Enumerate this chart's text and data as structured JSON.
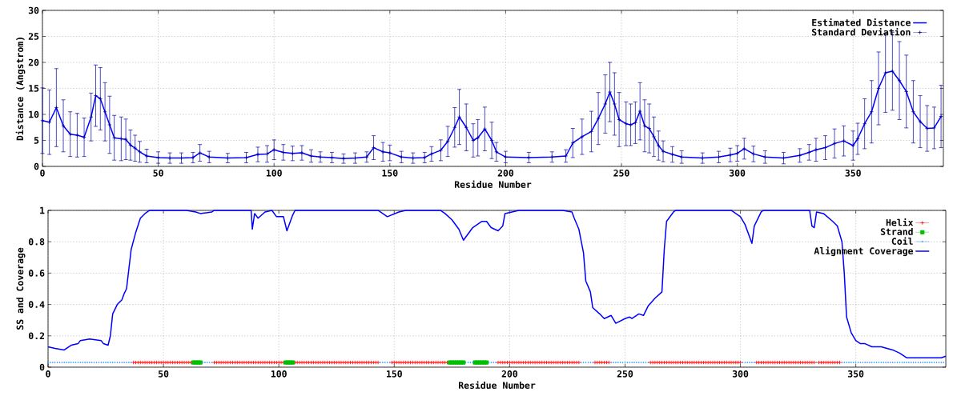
{
  "chart_data": [
    {
      "type": "line",
      "xlabel": "Residue Number",
      "ylabel": "Distance (Angstrom)",
      "xlim": [
        0,
        389
      ],
      "ylim": [
        0,
        30
      ],
      "xticks": [
        0,
        50,
        100,
        150,
        200,
        250,
        300,
        350
      ],
      "yticks": [
        0,
        5,
        10,
        15,
        20,
        25,
        30
      ],
      "grid": true,
      "legend": "top right",
      "x": [
        0,
        3,
        6,
        9,
        12,
        15,
        18,
        21,
        23,
        25,
        27,
        29,
        31,
        34,
        36,
        38,
        40,
        42,
        45,
        50,
        55,
        60,
        65,
        68,
        72,
        80,
        88,
        93,
        97,
        100,
        104,
        108,
        112,
        116,
        120,
        125,
        130,
        135,
        140,
        143,
        147,
        150,
        155,
        160,
        165,
        168,
        172,
        175,
        178,
        180,
        183,
        186,
        188,
        191,
        194,
        196,
        200,
        210,
        220,
        226,
        229,
        233,
        237,
        240,
        243,
        245,
        247,
        249,
        252,
        254,
        256,
        258,
        260,
        262,
        264,
        266,
        268,
        272,
        276,
        285,
        292,
        297,
        300,
        303,
        307,
        312,
        320,
        327,
        331,
        334,
        338,
        342,
        346,
        350,
        352,
        355,
        358,
        361,
        364,
        367,
        370,
        373,
        376,
        379,
        382,
        385,
        388
      ],
      "series": [
        {
          "name": "Estimated Distance",
          "color": "#0000ff",
          "marker": "none",
          "values": [
            8.8,
            8.5,
            11.3,
            7.8,
            6.2,
            6.0,
            5.6,
            9.5,
            13.6,
            13.0,
            10.5,
            8.0,
            5.5,
            5.3,
            5.2,
            4.1,
            3.5,
            2.8,
            2.0,
            1.7,
            1.6,
            1.6,
            1.7,
            2.6,
            1.8,
            1.6,
            1.7,
            2.3,
            2.4,
            3.2,
            2.7,
            2.5,
            2.6,
            2.0,
            1.8,
            1.7,
            1.5,
            1.6,
            1.8,
            3.6,
            2.8,
            2.6,
            1.8,
            1.6,
            1.7,
            2.4,
            3.1,
            4.8,
            7.5,
            9.5,
            7.5,
            5.0,
            5.5,
            7.2,
            5.0,
            2.8,
            1.8,
            1.7,
            1.8,
            2.0,
            4.5,
            5.7,
            6.7,
            9.2,
            12.0,
            14.3,
            12.0,
            9.0,
            8.2,
            8.0,
            8.4,
            10.6,
            7.8,
            7.3,
            5.7,
            4.0,
            2.9,
            2.3,
            1.8,
            1.6,
            1.8,
            2.2,
            2.5,
            3.4,
            2.4,
            1.8,
            1.6,
            2.1,
            2.7,
            3.2,
            3.6,
            4.4,
            4.9,
            4.0,
            5.3,
            8.2,
            10.5,
            15.0,
            18.0,
            18.3,
            16.5,
            14.4,
            10.5,
            8.6,
            7.3,
            7.4,
            9.6
          ]
        },
        {
          "name": "Standard Deviation",
          "type": "scatter",
          "color": "#0000a0",
          "marker": "cross",
          "values": [
            8.8,
            8.5,
            11.3,
            7.8,
            6.2,
            6.0,
            5.6,
            9.5,
            13.6,
            13.0,
            10.5,
            8.0,
            5.5,
            5.3,
            5.2,
            4.1,
            3.5,
            2.8,
            2.0,
            1.7,
            1.6,
            1.6,
            1.7,
            2.6,
            1.8,
            1.6,
            1.7,
            2.3,
            2.4,
            3.2,
            2.7,
            2.5,
            2.6,
            2.0,
            1.8,
            1.7,
            1.5,
            1.6,
            1.8,
            3.6,
            2.8,
            2.6,
            1.8,
            1.6,
            1.7,
            2.4,
            3.1,
            4.8,
            7.5,
            9.5,
            7.5,
            5.0,
            5.5,
            7.2,
            5.0,
            2.8,
            1.8,
            1.7,
            1.8,
            2.0,
            4.5,
            5.7,
            6.7,
            9.2,
            12.0,
            14.3,
            12.0,
            9.0,
            8.2,
            8.0,
            8.4,
            10.6,
            7.8,
            7.3,
            5.7,
            4.0,
            2.9,
            2.3,
            1.8,
            1.6,
            1.8,
            2.2,
            2.5,
            3.4,
            2.4,
            1.8,
            1.6,
            2.1,
            2.7,
            3.2,
            3.6,
            4.4,
            4.9,
            4.0,
            5.3,
            8.2,
            10.5,
            15.0,
            18.0,
            18.3,
            16.5,
            14.4,
            10.5,
            8.6,
            7.3,
            7.4,
            9.6
          ],
          "errors": [
            6.3,
            6.2,
            7.5,
            5.0,
            4.3,
            4.2,
            3.7,
            4.6,
            5.9,
            6.0,
            5.6,
            5.5,
            4.3,
            4.2,
            3.9,
            2.9,
            2.5,
            2.0,
            1.3,
            1.1,
            1.0,
            1.0,
            1.0,
            1.6,
            1.1,
            0.9,
            1.0,
            1.4,
            1.6,
            1.9,
            1.5,
            1.4,
            1.4,
            1.2,
            1.0,
            1.0,
            0.9,
            1.0,
            1.0,
            2.3,
            1.8,
            1.5,
            1.1,
            1.0,
            1.0,
            1.4,
            2.0,
            2.9,
            3.8,
            5.3,
            4.5,
            3.2,
            3.5,
            4.2,
            3.5,
            1.8,
            1.1,
            1.0,
            1.0,
            1.2,
            2.8,
            3.4,
            3.9,
            5.0,
            5.6,
            5.7,
            6.0,
            5.2,
            4.2,
            4.0,
            4.0,
            5.5,
            5.0,
            4.7,
            3.8,
            2.8,
            2.0,
            1.5,
            1.2,
            1.0,
            1.1,
            1.3,
            1.5,
            2.0,
            1.5,
            1.2,
            1.1,
            1.3,
            1.5,
            2.2,
            2.3,
            2.8,
            2.9,
            2.8,
            3.0,
            4.8,
            6.0,
            7.0,
            7.6,
            7.5,
            7.5,
            7.0,
            6.0,
            5.0,
            4.4,
            4.0,
            6.0
          ]
        }
      ]
    },
    {
      "type": "line",
      "xlabel": "Residue Number",
      "ylabel": "SS and Coverage",
      "xlim": [
        0,
        389
      ],
      "ylim": [
        0,
        1
      ],
      "xticks": [
        0,
        50,
        100,
        150,
        200,
        250,
        300,
        350
      ],
      "yticks": [
        0,
        0.2,
        0.4,
        0.6,
        0.8,
        1
      ],
      "grid": true,
      "legend": "top right",
      "series": [
        {
          "name": "Helix",
          "type": "scatter",
          "color": "#ff0000",
          "marker": "cross",
          "x": [
            37,
            38,
            39,
            40,
            41,
            42,
            43,
            44,
            45,
            46,
            47,
            48,
            49,
            50,
            51,
            52,
            53,
            54,
            55,
            56,
            57,
            58,
            59,
            60,
            61,
            62,
            72,
            73,
            74,
            75,
            76,
            77,
            78,
            79,
            80,
            81,
            82,
            83,
            84,
            85,
            86,
            87,
            88,
            89,
            90,
            91,
            92,
            93,
            94,
            95,
            96,
            97,
            98,
            99,
            100,
            101,
            102,
            107,
            108,
            109,
            110,
            111,
            112,
            113,
            114,
            115,
            116,
            117,
            118,
            119,
            120,
            121,
            122,
            123,
            124,
            125,
            126,
            127,
            128,
            129,
            130,
            131,
            132,
            133,
            134,
            135,
            136,
            137,
            138,
            139,
            140,
            141,
            142,
            143,
            149,
            150,
            151,
            152,
            153,
            154,
            155,
            156,
            157,
            158,
            159,
            160,
            161,
            162,
            163,
            164,
            165,
            166,
            167,
            168,
            169,
            170,
            171,
            172,
            173,
            195,
            196,
            197,
            198,
            199,
            200,
            201,
            202,
            203,
            204,
            205,
            206,
            207,
            208,
            209,
            210,
            211,
            212,
            213,
            214,
            215,
            216,
            217,
            218,
            219,
            220,
            221,
            222,
            223,
            224,
            225,
            226,
            227,
            228,
            229,
            230,
            237,
            238,
            239,
            240,
            241,
            242,
            243,
            261,
            262,
            263,
            264,
            265,
            266,
            267,
            268,
            269,
            270,
            271,
            272,
            273,
            274,
            275,
            276,
            277,
            278,
            279,
            280,
            281,
            282,
            283,
            284,
            285,
            286,
            287,
            288,
            289,
            290,
            291,
            292,
            293,
            294,
            295,
            296,
            297,
            298,
            299,
            300,
            307,
            308,
            309,
            310,
            311,
            312,
            313,
            314,
            315,
            316,
            317,
            318,
            319,
            320,
            321,
            322,
            323,
            324,
            325,
            326,
            327,
            328,
            329,
            330,
            331,
            332,
            334,
            335,
            336,
            337,
            338,
            339,
            340,
            341,
            342,
            343
          ],
          "values": [
            0.03,
            0.03,
            0.03,
            0.03,
            0.03,
            0.03,
            0.03,
            0.03,
            0.03,
            0.03,
            0.03,
            0.03,
            0.03,
            0.03,
            0.03,
            0.03,
            0.03,
            0.03,
            0.03,
            0.03,
            0.03,
            0.03,
            0.03,
            0.03,
            0.03,
            0.03,
            0.03,
            0.03,
            0.03,
            0.03,
            0.03,
            0.03,
            0.03,
            0.03,
            0.03,
            0.03,
            0.03,
            0.03,
            0.03,
            0.03,
            0.03,
            0.03,
            0.03,
            0.03,
            0.03,
            0.03,
            0.03,
            0.03,
            0.03,
            0.03,
            0.03,
            0.03,
            0.03,
            0.03,
            0.03,
            0.03,
            0.03,
            0.03,
            0.03,
            0.03,
            0.03,
            0.03,
            0.03,
            0.03,
            0.03,
            0.03,
            0.03,
            0.03,
            0.03,
            0.03,
            0.03,
            0.03,
            0.03,
            0.03,
            0.03,
            0.03,
            0.03,
            0.03,
            0.03,
            0.03,
            0.03,
            0.03,
            0.03,
            0.03,
            0.03,
            0.03,
            0.03,
            0.03,
            0.03,
            0.03,
            0.03,
            0.03,
            0.03,
            0.03,
            0.03,
            0.03,
            0.03,
            0.03,
            0.03,
            0.03,
            0.03,
            0.03,
            0.03,
            0.03,
            0.03,
            0.03,
            0.03,
            0.03,
            0.03,
            0.03,
            0.03,
            0.03,
            0.03,
            0.03,
            0.03,
            0.03,
            0.03,
            0.03,
            0.03,
            0.03,
            0.03,
            0.03,
            0.03,
            0.03,
            0.03,
            0.03,
            0.03,
            0.03,
            0.03,
            0.03,
            0.03,
            0.03,
            0.03,
            0.03,
            0.03,
            0.03,
            0.03,
            0.03,
            0.03,
            0.03,
            0.03,
            0.03,
            0.03,
            0.03,
            0.03,
            0.03,
            0.03,
            0.03,
            0.03,
            0.03,
            0.03,
            0.03,
            0.03,
            0.03,
            0.03,
            0.03,
            0.03,
            0.03,
            0.03,
            0.03,
            0.03,
            0.03,
            0.03,
            0.03,
            0.03,
            0.03,
            0.03,
            0.03,
            0.03,
            0.03,
            0.03,
            0.03,
            0.03,
            0.03,
            0.03,
            0.03,
            0.03,
            0.03,
            0.03,
            0.03,
            0.03,
            0.03,
            0.03,
            0.03,
            0.03,
            0.03,
            0.03,
            0.03,
            0.03,
            0.03,
            0.03,
            0.03,
            0.03,
            0.03,
            0.03,
            0.03,
            0.03,
            0.03,
            0.03,
            0.03,
            0.03,
            0.03,
            0.03,
            0.03,
            0.03,
            0.03,
            0.03,
            0.03,
            0.03,
            0.03,
            0.03,
            0.03,
            0.03,
            0.03,
            0.03,
            0.03,
            0.03,
            0.03,
            0.03,
            0.03,
            0.03,
            0.03,
            0.03,
            0.03,
            0.03,
            0.03,
            0.03,
            0.03,
            0.03,
            0.03,
            0.03,
            0.03,
            0.03,
            0.03,
            0.03,
            0.03,
            0.03,
            0.03
          ]
        },
        {
          "name": "Strand",
          "type": "scatter",
          "color": "#00c000",
          "marker": "square",
          "x": [
            63,
            64,
            65,
            66,
            103,
            104,
            105,
            106,
            174,
            175,
            176,
            177,
            178,
            179,
            180,
            185,
            186,
            187,
            188,
            189,
            190
          ],
          "values": [
            0.03,
            0.03,
            0.03,
            0.03,
            0.03,
            0.03,
            0.03,
            0.03,
            0.03,
            0.03,
            0.03,
            0.03,
            0.03,
            0.03,
            0.03,
            0.03,
            0.03,
            0.03,
            0.03,
            0.03,
            0.03
          ]
        },
        {
          "name": "Coil",
          "type": "scatter",
          "color": "#1e90ff",
          "marker": "circle",
          "x": [
            0,
            1,
            2,
            3,
            4,
            5,
            6,
            7,
            8,
            9,
            10,
            11,
            12,
            13,
            14,
            15,
            16,
            17,
            18,
            19,
            20,
            21,
            22,
            23,
            24,
            25,
            26,
            27,
            28,
            29,
            30,
            31,
            32,
            33,
            34,
            35,
            36,
            67,
            68,
            69,
            70,
            71,
            144,
            145,
            146,
            147,
            148,
            181,
            182,
            183,
            184,
            191,
            192,
            193,
            194,
            231,
            232,
            233,
            234,
            235,
            236,
            244,
            245,
            246,
            247,
            248,
            249,
            250,
            251,
            252,
            253,
            254,
            255,
            256,
            257,
            258,
            259,
            260,
            301,
            302,
            303,
            304,
            305,
            306,
            333,
            344,
            345,
            346,
            347,
            348,
            349,
            350,
            351,
            352,
            353,
            354,
            355,
            356,
            357,
            358,
            359,
            360,
            361,
            362,
            363,
            364,
            365,
            366,
            367,
            368,
            369,
            370,
            371,
            372,
            373,
            374,
            375,
            376,
            377,
            378,
            379,
            380,
            381,
            382,
            383,
            384,
            385,
            386,
            387,
            388
          ],
          "values": [
            0.03,
            0.03,
            0.03,
            0.03,
            0.03,
            0.03,
            0.03,
            0.03,
            0.03,
            0.03,
            0.03,
            0.03,
            0.03,
            0.03,
            0.03,
            0.03,
            0.03,
            0.03,
            0.03,
            0.03,
            0.03,
            0.03,
            0.03,
            0.03,
            0.03,
            0.03,
            0.03,
            0.03,
            0.03,
            0.03,
            0.03,
            0.03,
            0.03,
            0.03,
            0.03,
            0.03,
            0.03,
            0.03,
            0.03,
            0.03,
            0.03,
            0.03,
            0.03,
            0.03,
            0.03,
            0.03,
            0.03,
            0.03,
            0.03,
            0.03,
            0.03,
            0.03,
            0.03,
            0.03,
            0.03,
            0.03,
            0.03,
            0.03,
            0.03,
            0.03,
            0.03,
            0.03,
            0.03,
            0.03,
            0.03,
            0.03,
            0.03,
            0.03,
            0.03,
            0.03,
            0.03,
            0.03,
            0.03,
            0.03,
            0.03,
            0.03,
            0.03,
            0.03,
            0.03,
            0.03,
            0.03,
            0.03,
            0.03,
            0.03,
            0.03,
            0.03,
            0.03,
            0.03,
            0.03,
            0.03,
            0.03,
            0.03,
            0.03,
            0.03,
            0.03,
            0.03,
            0.03,
            0.03,
            0.03,
            0.03,
            0.03,
            0.03,
            0.03,
            0.03,
            0.03,
            0.03,
            0.03,
            0.03,
            0.03,
            0.03,
            0.03,
            0.03,
            0.03,
            0.03,
            0.03,
            0.03,
            0.03,
            0.03,
            0.03,
            0.03,
            0.03,
            0.03,
            0.03,
            0.03,
            0.03,
            0.03,
            0.03,
            0.03,
            0.03,
            0.03
          ]
        },
        {
          "name": "Alignment Coverage",
          "color": "#0000ff",
          "marker": "none",
          "x": [
            0,
            3,
            7,
            10,
            13,
            14,
            18,
            23,
            24,
            26,
            27,
            28,
            30,
            32,
            33,
            34,
            36,
            38,
            40,
            42,
            44,
            60,
            64,
            66,
            71,
            72,
            88,
            88.5,
            89.5,
            91,
            94,
            97,
            99,
            102,
            103.5,
            106,
            107,
            143,
            147,
            152,
            155,
            170,
            172,
            175,
            178,
            180,
            184,
            187,
            188,
            190,
            192,
            195,
            197,
            198,
            204,
            223,
            227,
            228,
            230,
            232,
            233,
            235,
            236,
            239,
            241,
            244,
            246,
            250,
            252,
            253,
            256,
            258,
            260,
            263,
            266,
            267,
            268,
            271,
            272,
            296,
            300,
            302,
            305,
            306,
            309,
            310,
            330,
            331,
            332,
            333,
            336,
            340,
            342,
            344,
            345,
            346,
            348,
            350,
            352,
            354,
            357,
            361,
            366,
            369,
            372,
            387,
            389
          ],
          "values": [
            0.13,
            0.12,
            0.11,
            0.14,
            0.15,
            0.17,
            0.18,
            0.17,
            0.15,
            0.14,
            0.2,
            0.34,
            0.4,
            0.43,
            0.47,
            0.5,
            0.75,
            0.86,
            0.95,
            0.98,
            1,
            1,
            0.99,
            0.98,
            0.99,
            1,
            1,
            0.88,
            0.98,
            0.95,
            0.99,
            1,
            0.96,
            0.96,
            0.87,
            0.97,
            1,
            1,
            0.96,
            0.99,
            1,
            1,
            0.98,
            0.94,
            0.88,
            0.81,
            0.89,
            0.92,
            0.93,
            0.93,
            0.89,
            0.87,
            0.9,
            0.98,
            1,
            1,
            0.99,
            0.95,
            0.88,
            0.73,
            0.55,
            0.48,
            0.38,
            0.34,
            0.31,
            0.33,
            0.28,
            0.31,
            0.32,
            0.31,
            0.34,
            0.33,
            0.39,
            0.44,
            0.48,
            0.75,
            0.93,
            0.99,
            1,
            1,
            0.96,
            0.91,
            0.79,
            0.9,
            0.99,
            1,
            1,
            0.9,
            0.89,
            0.99,
            0.98,
            0.93,
            0.9,
            0.8,
            0.6,
            0.32,
            0.22,
            0.17,
            0.15,
            0.15,
            0.13,
            0.13,
            0.11,
            0.09,
            0.06,
            0.06,
            0.07
          ]
        }
      ]
    }
  ]
}
